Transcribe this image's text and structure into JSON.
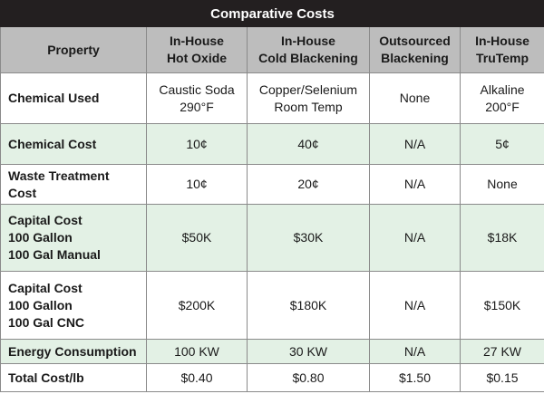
{
  "title": "Comparative Costs",
  "columns": [
    {
      "lines": [
        "Property"
      ]
    },
    {
      "lines": [
        "In-House",
        "Hot Oxide"
      ]
    },
    {
      "lines": [
        "In-House",
        "Cold Blackening"
      ]
    },
    {
      "lines": [
        "Outsourced",
        "Blackening"
      ]
    },
    {
      "lines": [
        "In-House",
        "TruTemp"
      ]
    }
  ],
  "rows": [
    {
      "label": [
        "Chemical Used"
      ],
      "cells": [
        [
          "Caustic Soda",
          "290°F"
        ],
        [
          "Copper/Selenium",
          "Room Temp"
        ],
        [
          "None"
        ],
        [
          "Alkaline",
          "200°F"
        ]
      ]
    },
    {
      "label": [
        "Chemical Cost"
      ],
      "cells": [
        [
          "10¢"
        ],
        [
          "40¢"
        ],
        [
          "N/A"
        ],
        [
          "5¢"
        ]
      ]
    },
    {
      "label": [
        "Waste Treatment Cost"
      ],
      "cells": [
        [
          "10¢"
        ],
        [
          "20¢"
        ],
        [
          "N/A"
        ],
        [
          "None"
        ]
      ]
    },
    {
      "label": [
        "Capital Cost",
        "100 Gallon",
        "100 Gal Manual"
      ],
      "cells": [
        [
          "$50K"
        ],
        [
          "$30K"
        ],
        [
          "N/A"
        ],
        [
          "$18K"
        ]
      ]
    },
    {
      "label": [
        "Capital Cost",
        "100 Gallon",
        "100 Gal CNC"
      ],
      "cells": [
        [
          "$200K"
        ],
        [
          "$180K"
        ],
        [
          "N/A"
        ],
        [
          "$150K"
        ]
      ]
    },
    {
      "label": [
        "Energy Consumption"
      ],
      "cells": [
        [
          "100 KW"
        ],
        [
          "30 KW"
        ],
        [
          "N/A"
        ],
        [
          "27 KW"
        ]
      ]
    },
    {
      "label": [
        "Total Cost/lb"
      ],
      "cells": [
        [
          "$0.40"
        ],
        [
          "$0.80"
        ],
        [
          "$1.50"
        ],
        [
          "$0.15"
        ]
      ]
    }
  ]
}
